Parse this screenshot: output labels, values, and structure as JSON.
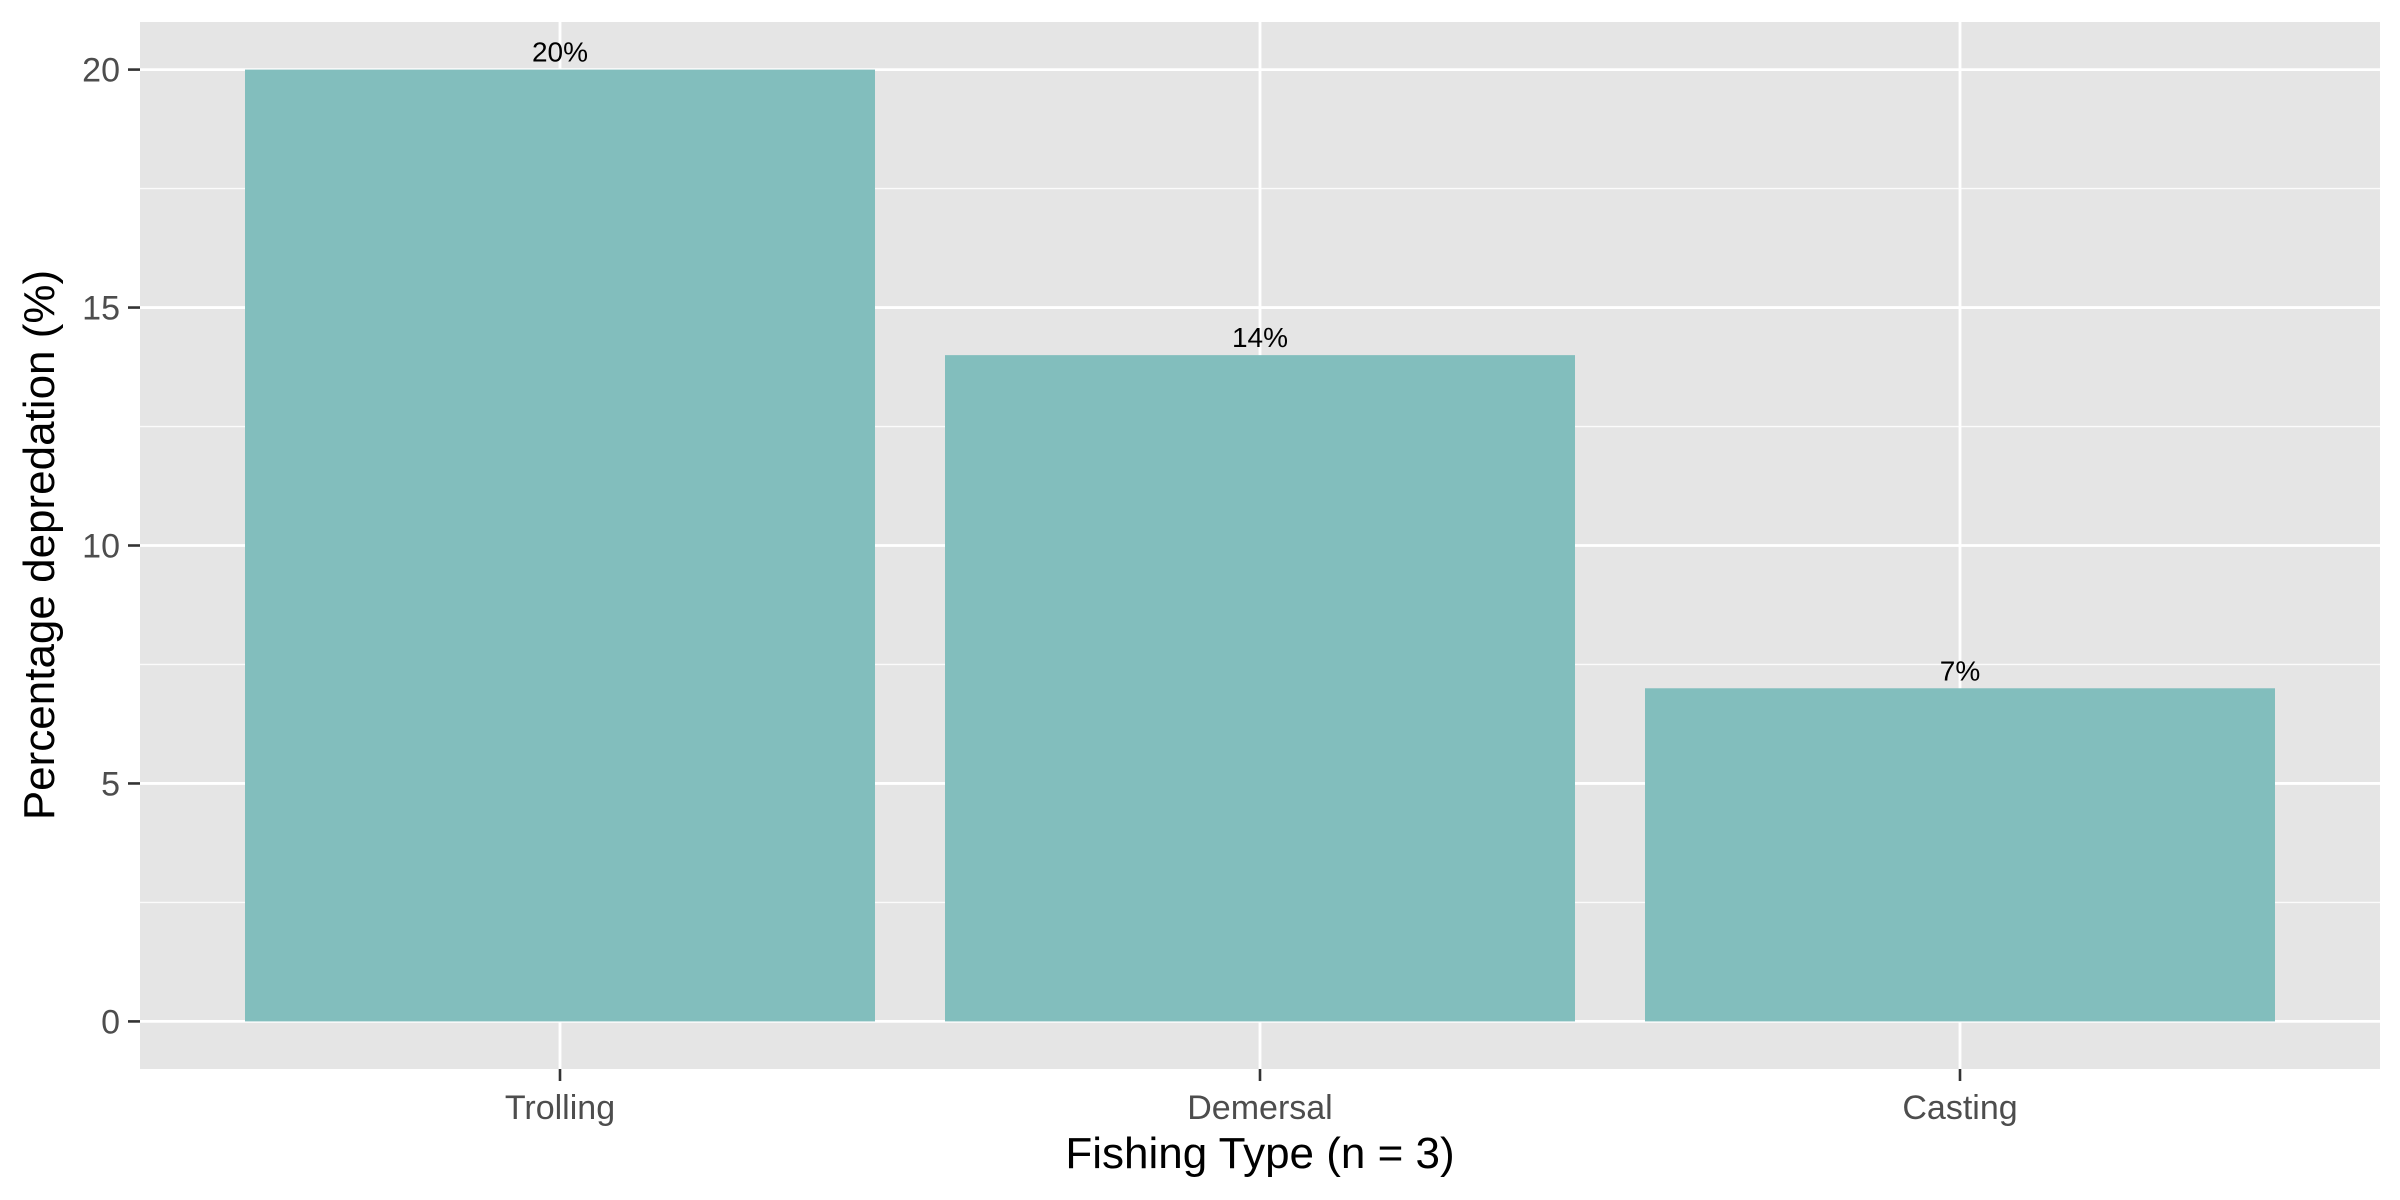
{
  "chart_data": {
    "type": "bar",
    "title": "",
    "xlabel": "Fishing Type (n = 3)",
    "ylabel": "Percentage depredation (%)",
    "categories": [
      "Trolling",
      "Demersal",
      "Casting"
    ],
    "values": [
      20,
      14,
      7
    ],
    "data_labels": [
      "20%",
      "14%",
      "7%"
    ],
    "ylim": [
      -1,
      21
    ],
    "y_ticks": [
      0,
      5,
      10,
      15,
      20
    ],
    "y_tick_labels": [
      "0",
      "5",
      "10",
      "15",
      "20"
    ],
    "grid": true,
    "legend": "none"
  },
  "colors": {
    "bar": "#82bebd",
    "panel_background": "#e5e5e5",
    "grid": "#ffffff"
  }
}
